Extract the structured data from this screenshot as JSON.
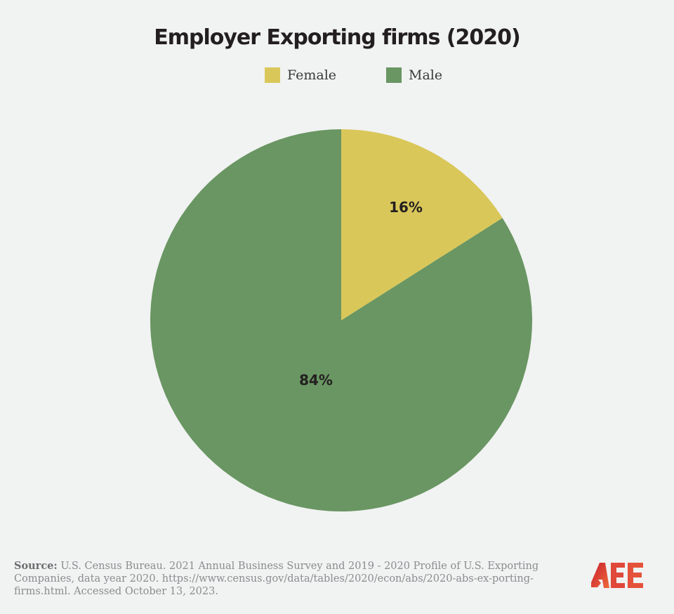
{
  "chart_data": {
    "type": "pie",
    "title": "Employer Exporting firms (2020)",
    "categories": [
      "Female",
      "Male"
    ],
    "values": [
      16,
      84
    ],
    "labels": [
      "16%",
      "84%"
    ],
    "colors": [
      "#d9c75a",
      "#699662"
    ],
    "legend_position": "top",
    "start_angle": "12 o'clock, clockwise"
  },
  "legend": {
    "items": [
      {
        "label": "Female",
        "color": "#d9c75a"
      },
      {
        "label": "Male",
        "color": "#699662"
      }
    ]
  },
  "source": {
    "prefix": "Source:",
    "text": "U.S. Census Bureau. 2021 Annual Business Survey and 2019 - 2020 Profile of U.S. Exporting Companies, data year 2020. https://www.census.gov/data/tables/2020/econ/abs/2020-abs-ex-porting-firms.html. Accessed October 13, 2023."
  },
  "logo": {
    "text": "AEE",
    "color": "#e0483a"
  }
}
